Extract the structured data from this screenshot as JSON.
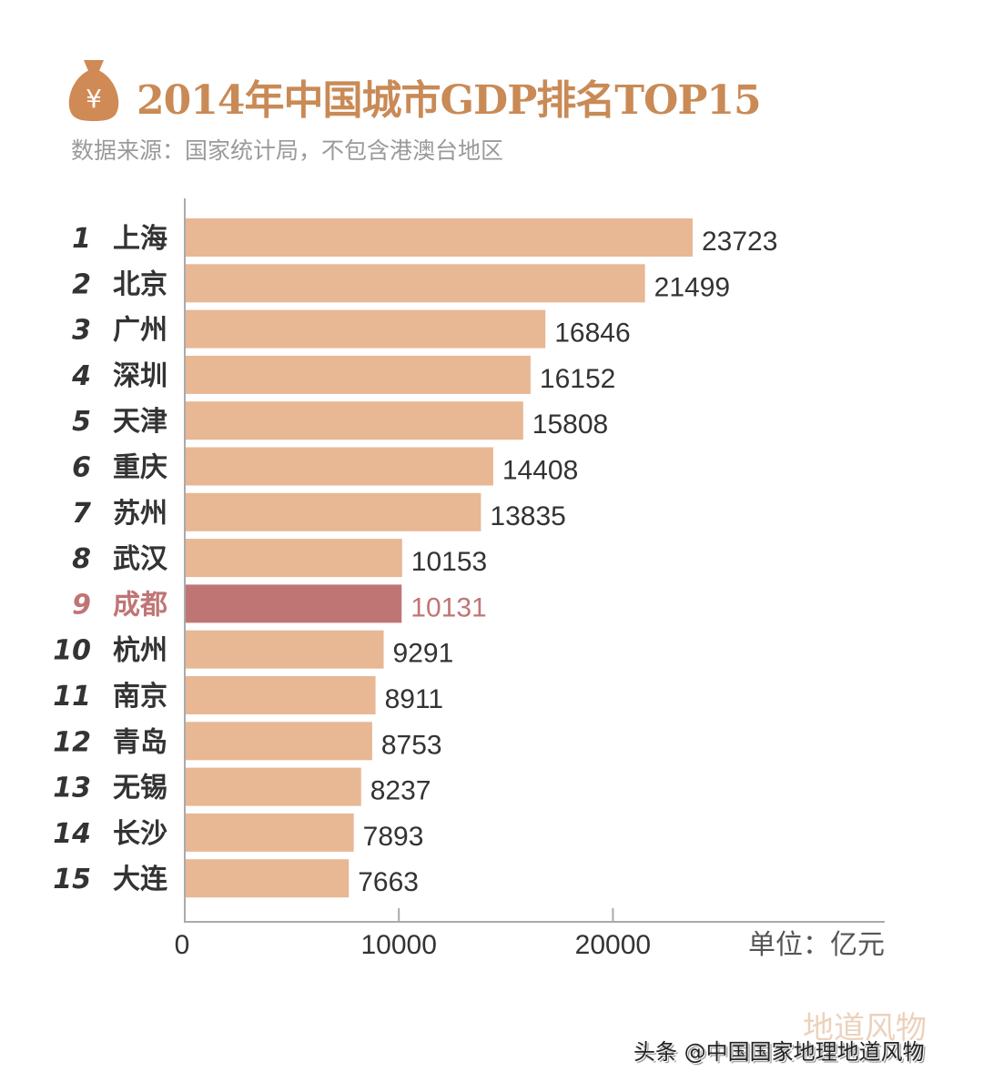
{
  "title": "2014年中国城市GDP排名TOP15",
  "subtitle": "数据来源：国家统计局，不包含港澳台地区",
  "icon": "money-bag-yuan-icon",
  "icon_glyph": "¥",
  "watermark": "地道风物",
  "credit": "头条 @中国国家地理地道风物",
  "colors": {
    "bar": "#e8b794",
    "highlight": "#c07575",
    "title": "#c98a56"
  },
  "chart_data": {
    "type": "bar",
    "orientation": "horizontal",
    "ranks": [
      "1",
      "2",
      "3",
      "4",
      "5",
      "6",
      "7",
      "8",
      "9",
      "10",
      "11",
      "12",
      "13",
      "14",
      "15"
    ],
    "categories": [
      "上海",
      "北京",
      "广州",
      "深圳",
      "天津",
      "重庆",
      "苏州",
      "武汉",
      "成都",
      "杭州",
      "南京",
      "青岛",
      "无锡",
      "长沙",
      "大连"
    ],
    "values": [
      23723,
      21499,
      16846,
      16152,
      15808,
      14408,
      13835,
      10153,
      10131,
      9291,
      8911,
      8753,
      8237,
      7893,
      7663
    ],
    "highlight": "成都",
    "xlim": [
      0,
      32000
    ],
    "xticks": [
      "0",
      "10000",
      "20000"
    ],
    "unit_label": "单位：亿元",
    "grid": false
  }
}
